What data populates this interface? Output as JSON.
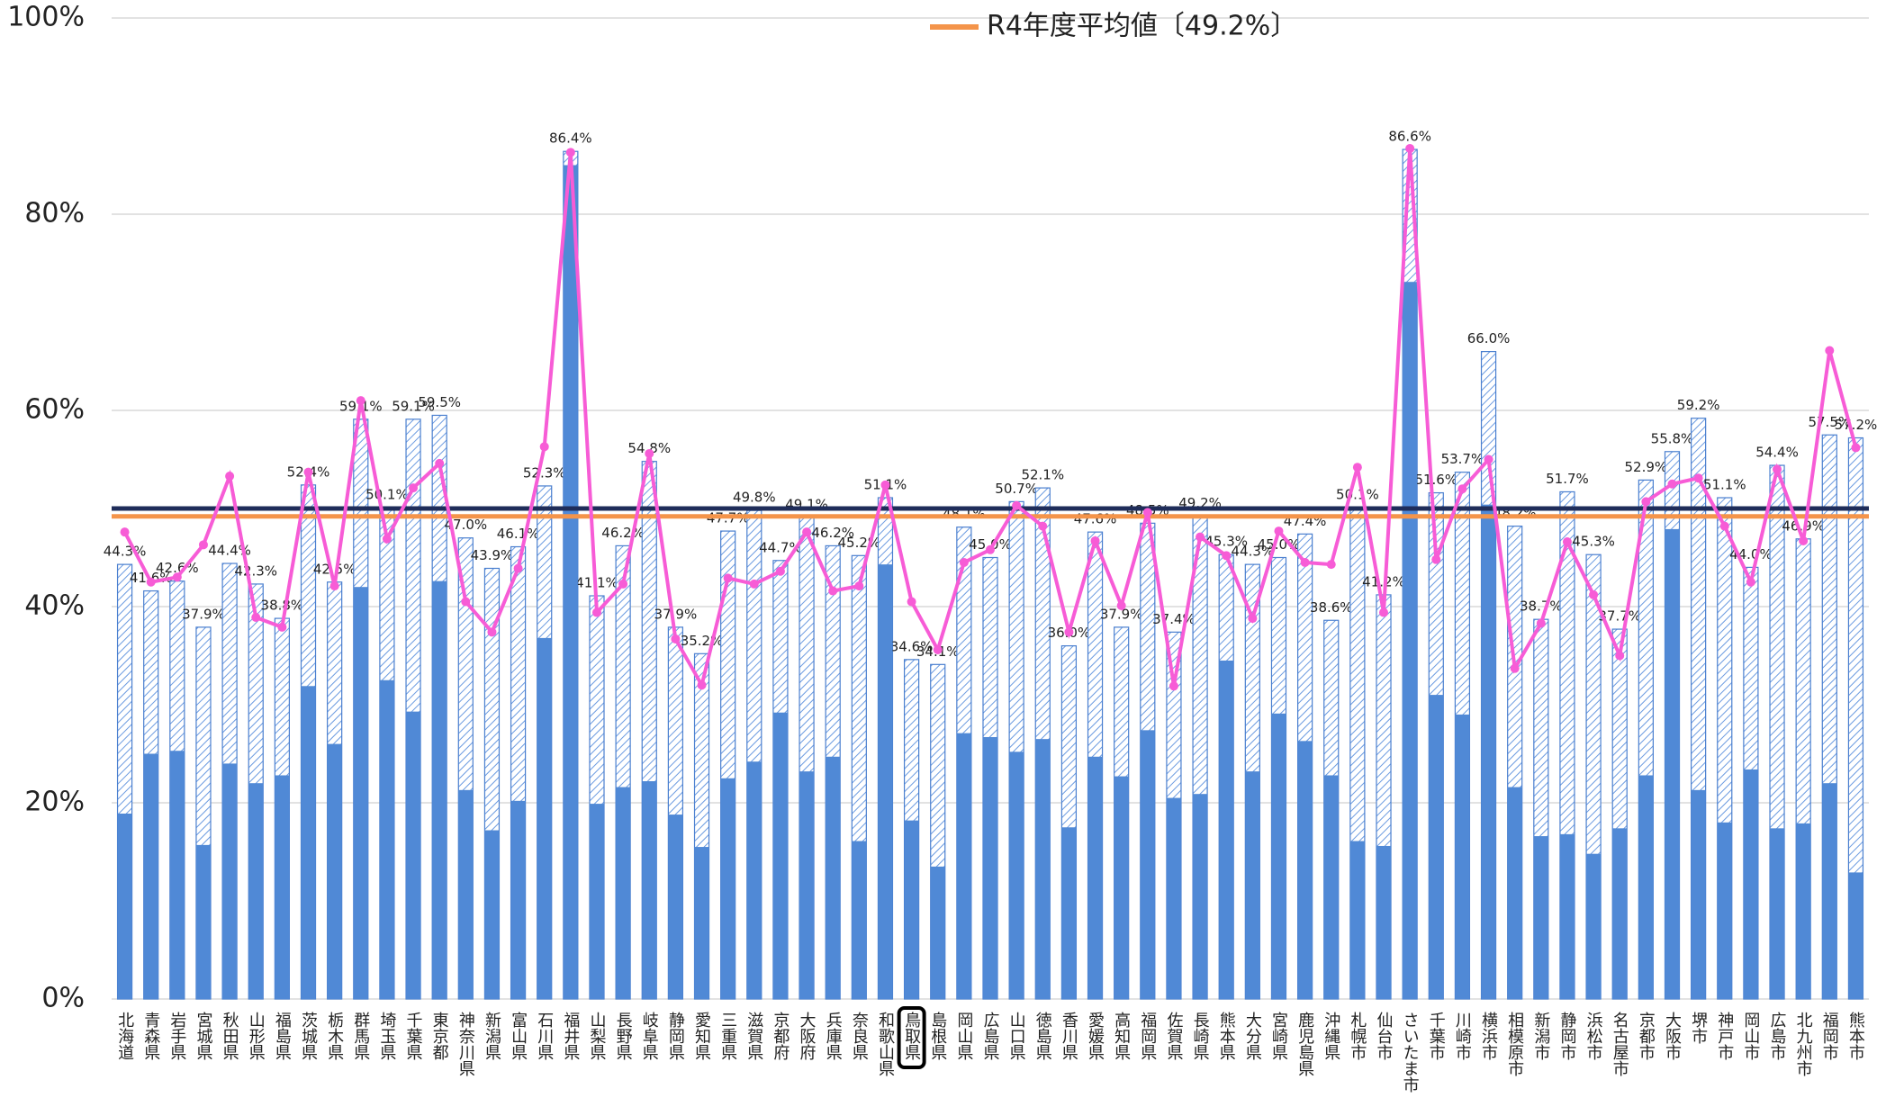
{
  "chart_data": {
    "type": "bar",
    "categories": [
      "北海道",
      "青森県",
      "岩手県",
      "宮城県",
      "秋田県",
      "山形県",
      "福島県",
      "茨城県",
      "栃木県",
      "群馬県",
      "埼玉県",
      "千葉県",
      "東京都",
      "神奈川県",
      "新潟県",
      "富山県",
      "石川県",
      "福井県",
      "山梨県",
      "長野県",
      "岐阜県",
      "静岡県",
      "愛知県",
      "三重県",
      "滋賀県",
      "京都府",
      "大阪府",
      "兵庫県",
      "奈良県",
      "和歌山県",
      "鳥取県",
      "島根県",
      "岡山県",
      "広島県",
      "山口県",
      "徳島県",
      "香川県",
      "愛媛県",
      "高知県",
      "福岡県",
      "佐賀県",
      "長崎県",
      "熊本県",
      "大分県",
      "宮崎県",
      "鹿児島県",
      "沖縄県",
      "札幌市",
      "仙台市",
      "さいたま市",
      "千葉市",
      "川崎市",
      "横浜市",
      "相模原市",
      "新潟市",
      "静岡市",
      "浜松市",
      "名古屋市",
      "京都市",
      "大阪市",
      "堺市",
      "神戸市",
      "岡山市",
      "広島市",
      "北九州市",
      "福岡市",
      "熊本市"
    ],
    "series": [
      {
        "mark": "bar",
        "pattern": "hatch",
        "color": "#4a7fcf",
        "values": [
          44.3,
          41.6,
          42.6,
          37.9,
          44.4,
          42.3,
          38.8,
          52.4,
          42.5,
          59.1,
          50.1,
          59.1,
          59.5,
          47.0,
          43.9,
          46.1,
          52.3,
          86.4,
          41.1,
          46.2,
          54.8,
          37.9,
          35.2,
          47.7,
          49.8,
          44.7,
          49.1,
          46.2,
          45.2,
          51.1,
          34.6,
          34.1,
          48.1,
          45.0,
          50.7,
          52.1,
          36.0,
          47.6,
          37.9,
          48.5,
          37.4,
          49.2,
          45.3,
          44.3,
          45.0,
          47.4,
          38.6,
          50.1,
          41.2,
          86.6,
          51.6,
          53.7,
          66.0,
          48.2,
          38.7,
          51.7,
          45.3,
          37.7,
          52.9,
          55.8,
          59.2,
          51.1,
          44.0,
          54.4,
          46.9,
          57.5,
          57.2
        ],
        "value_labels": [
          "44.3%",
          "41.6%",
          "42.6%",
          "37.9%",
          "44.4%",
          "42.3%",
          "38.8%",
          "52.4%",
          "42.5%",
          "59.1%",
          "50.1%",
          "59.1%",
          "59.5%",
          "47.0%",
          "43.9%",
          "46.1%",
          "52.3%",
          "86.4%",
          "41.1%",
          "46.2%",
          "54.8%",
          "37.9%",
          "35.2%",
          "47.7%",
          "49.8%",
          "44.7%",
          "49.1%",
          "46.2%",
          "45.2%",
          "51.1%",
          "34.6%",
          "34.1%",
          "48.1%",
          "45.0%",
          "50.7%",
          "52.1%",
          "36.0%",
          "47.6%",
          "37.9%",
          "48.5%",
          "37.4%",
          "49.2%",
          "45.3%",
          "44.3%",
          "45.0%",
          "47.4%",
          "38.6%",
          "50.1%",
          "41.2%",
          "86.6%",
          "51.6%",
          "53.7%",
          "66.0%",
          "48.2%",
          "38.7%",
          "51.7%",
          "45.3%",
          "37.7%",
          "52.9%",
          "55.8%",
          "59.2%",
          "51.1%",
          "44.0%",
          "54.4%",
          "46.9%",
          "57.5%",
          "57.2%"
        ]
      },
      {
        "mark": "bar",
        "color": "#5089d6",
        "values": [
          18.9,
          25.0,
          25.3,
          15.7,
          24.0,
          22.0,
          22.8,
          31.9,
          26.0,
          42.0,
          32.5,
          29.3,
          42.6,
          21.3,
          17.2,
          20.2,
          36.8,
          85.0,
          19.9,
          21.6,
          22.2,
          18.8,
          15.5,
          22.5,
          24.2,
          29.2,
          23.2,
          24.7,
          16.1,
          44.3,
          18.2,
          13.5,
          27.1,
          26.7,
          25.2,
          26.5,
          17.5,
          24.7,
          22.7,
          27.4,
          20.5,
          20.9,
          34.5,
          23.2,
          29.1,
          26.3,
          22.8,
          16.1,
          15.6,
          73.1,
          31.0,
          29.0,
          50.4,
          21.6,
          16.6,
          16.8,
          14.8,
          17.4,
          22.8,
          47.9,
          21.3,
          18.0,
          23.4,
          17.4,
          17.9,
          22.0,
          12.9
        ]
      },
      {
        "mark": "line",
        "color": "#f75cd6",
        "values": [
          47.6,
          42.5,
          43.0,
          46.3,
          53.3,
          38.9,
          37.9,
          53.7,
          42.1,
          61.0,
          46.9,
          52.1,
          54.6,
          40.5,
          37.4,
          43.9,
          56.3,
          86.3,
          39.4,
          42.3,
          55.6,
          36.7,
          32.0,
          42.9,
          42.3,
          43.6,
          47.6,
          41.6,
          42.1,
          52.4,
          40.5,
          35.6,
          44.5,
          45.8,
          50.3,
          48.2,
          37.4,
          46.7,
          40.1,
          49.6,
          31.9,
          47.1,
          45.2,
          38.8,
          47.7,
          44.5,
          44.3,
          54.2,
          39.4,
          86.7,
          44.8,
          52.0,
          55.0,
          33.7,
          38.3,
          46.6,
          41.2,
          35.0,
          50.7,
          52.5,
          53.1,
          48.2,
          42.5,
          54.0,
          46.7,
          66.1,
          56.2
        ]
      }
    ],
    "hlines": [
      {
        "value": 50,
        "color": "#1f2d5a"
      },
      {
        "name": "R4年度平均値〔49.2%〕",
        "value": 49.2,
        "color": "#f4944a"
      }
    ],
    "highlight": 30,
    "ylim": [
      0,
      100
    ],
    "yticks": [
      {
        "value": 0,
        "label": "0%"
      },
      {
        "value": 20,
        "label": "20%"
      },
      {
        "value": 40,
        "label": "40%"
      },
      {
        "value": 60,
        "label": "60%"
      },
      {
        "value": 80,
        "label": "80%"
      },
      {
        "value": 100,
        "label": "100%"
      }
    ],
    "grid": true
  }
}
